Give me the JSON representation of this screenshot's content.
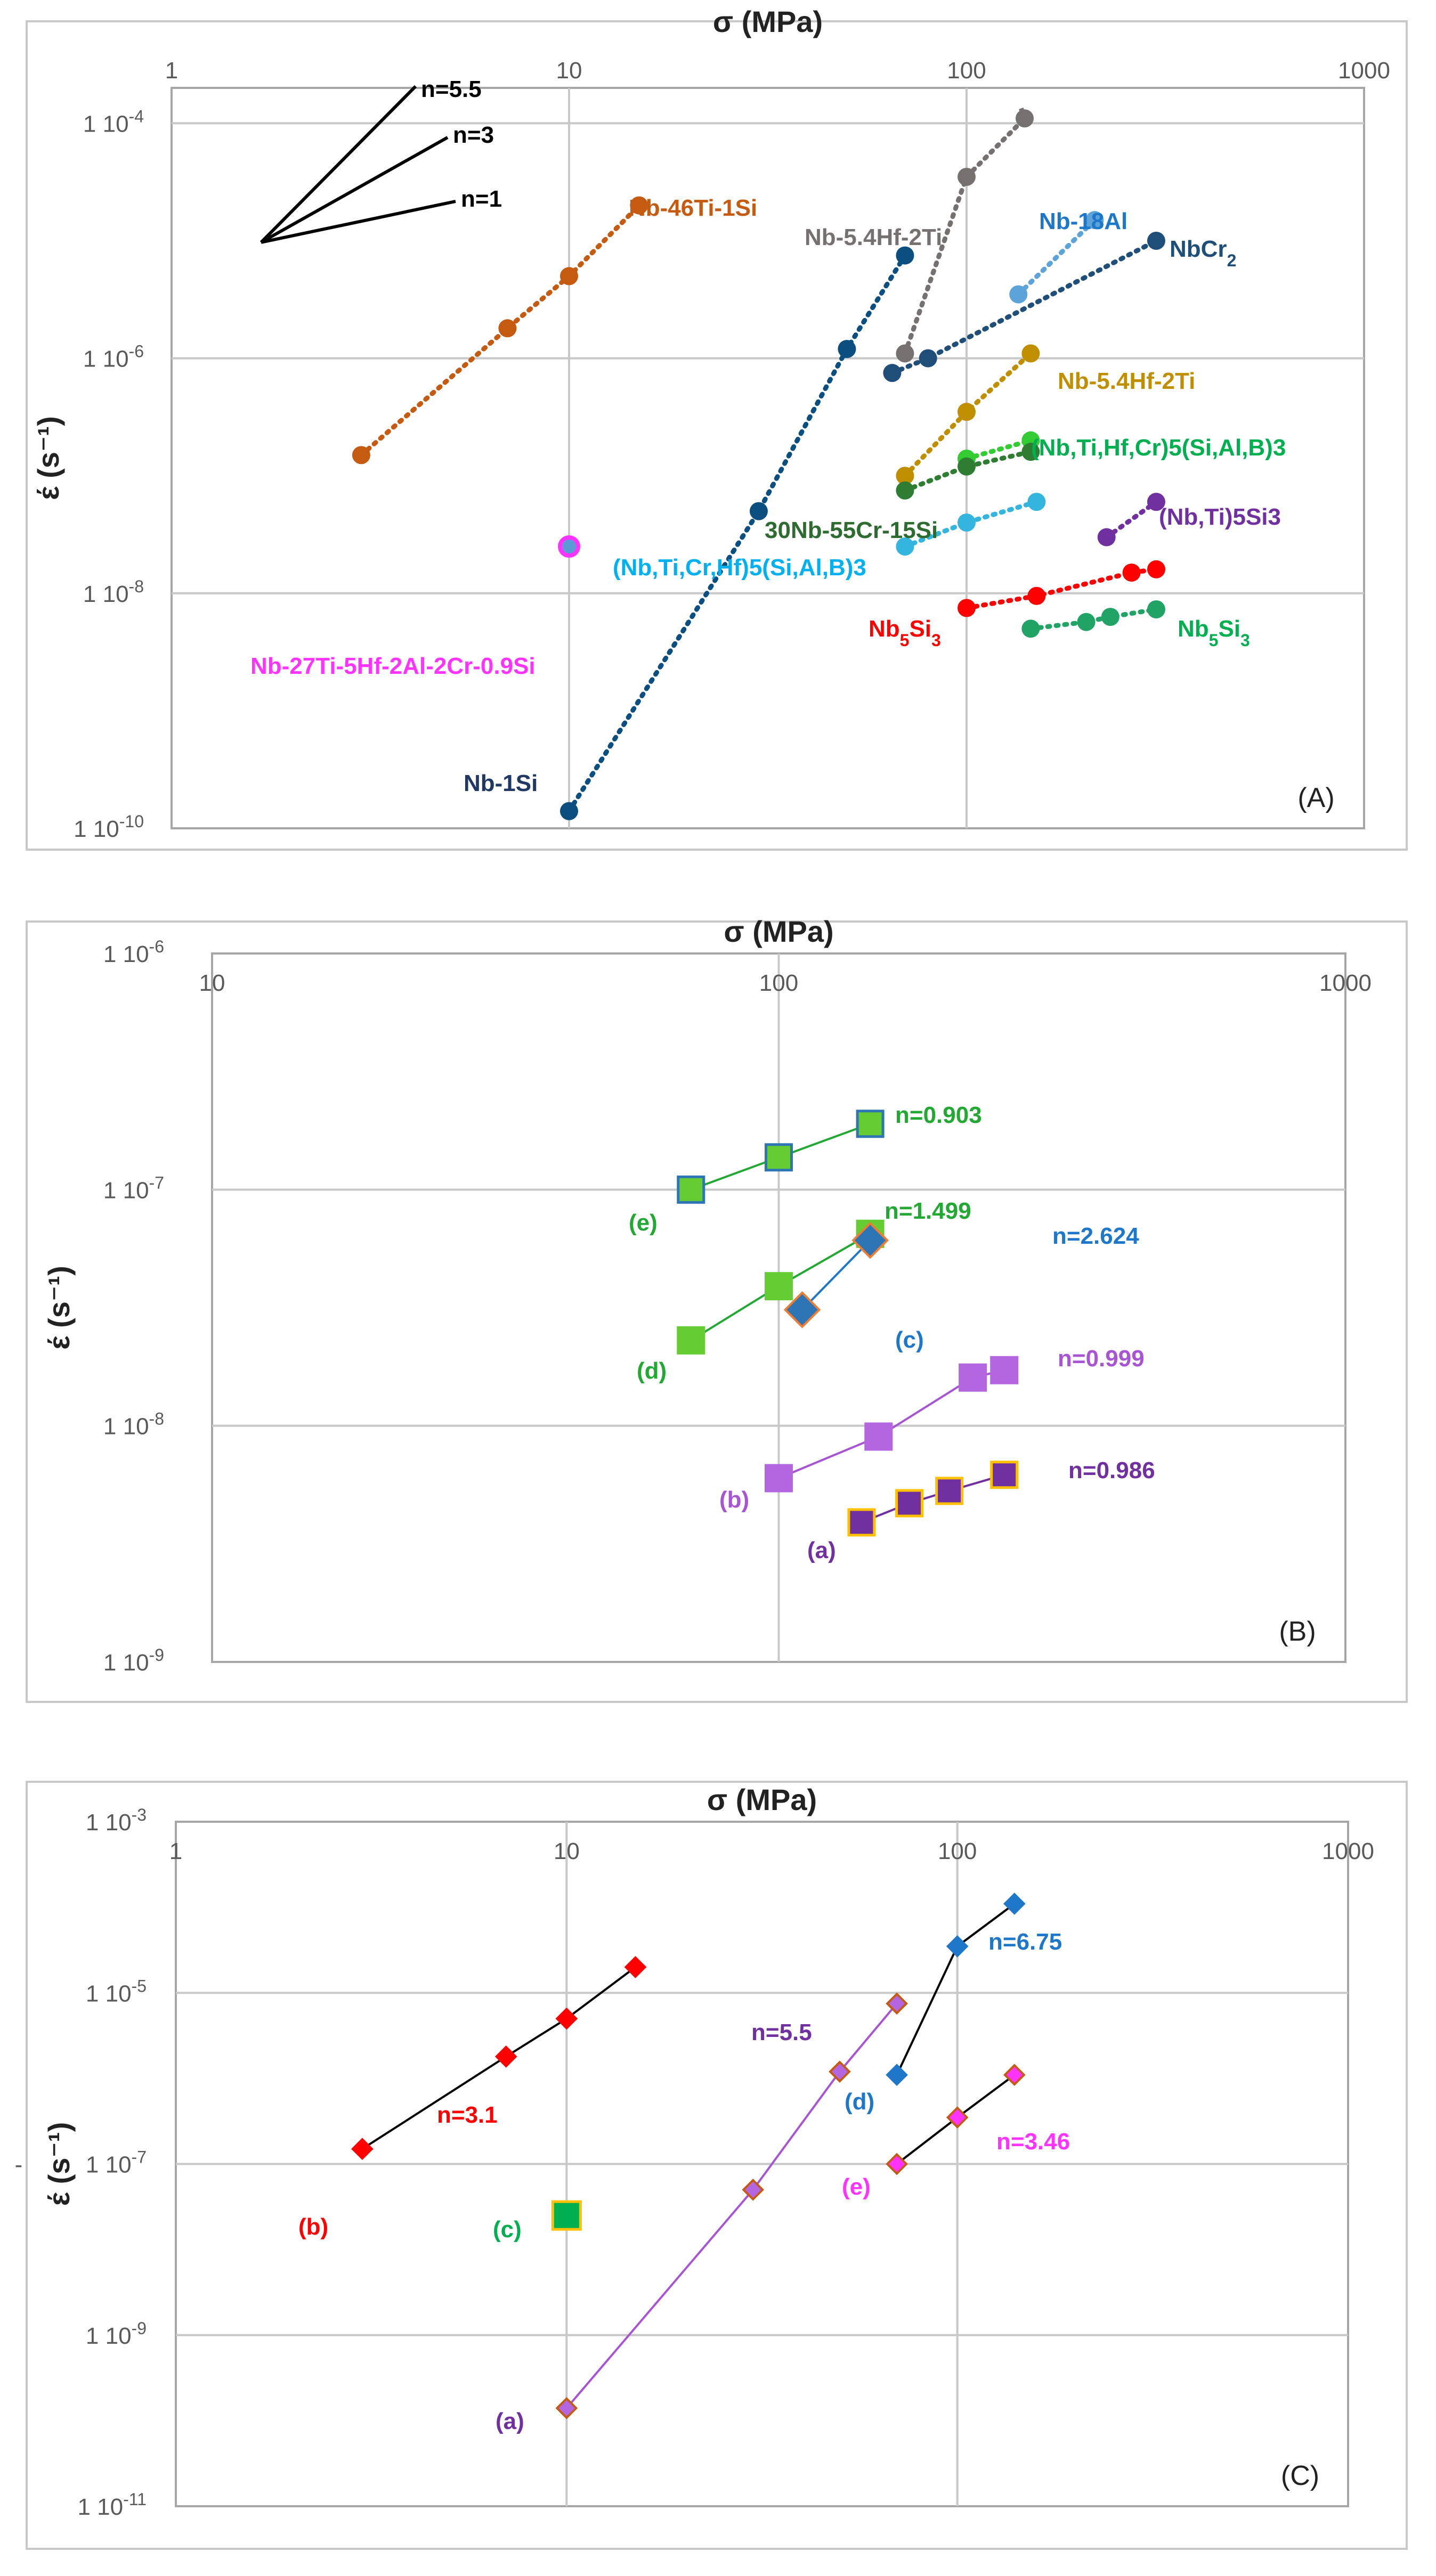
{
  "chart_data": [
    {
      "type": "line",
      "panel": "A",
      "panel_label": "(A)",
      "title": "σ (MPa)",
      "xlabel": "σ (MPa)",
      "ylabel": "έ (s⁻¹)",
      "xscale": "log",
      "yscale": "log",
      "xlim": [
        1,
        1000
      ],
      "ylim": [
        1e-10,
        0.0002
      ],
      "x_ticks": [
        {
          "v": 1,
          "label": "1"
        },
        {
          "v": 10,
          "label": "10"
        },
        {
          "v": 100,
          "label": "100"
        },
        {
          "v": 1000,
          "label": "1000"
        }
      ],
      "y_ticks": [
        {
          "v": 0.0001,
          "label": "1 10-4",
          "base": "1 10",
          "exp": "-4"
        },
        {
          "v": 1e-06,
          "label": "1 10-6",
          "base": "1 10",
          "exp": "-6"
        },
        {
          "v": 1e-08,
          "label": "1 10-8",
          "base": "1 10",
          "exp": "-8"
        },
        {
          "v": 1e-10,
          "label": "1 10-10",
          "base": "1 10",
          "exp": "-10"
        }
      ],
      "slope_key": [
        "n=5.5",
        "n=3",
        "n=1"
      ],
      "series": [
        {
          "name": "Nb-46Ti-1Si",
          "color": "#C55A11",
          "x": [
            3,
            7,
            10,
            15
          ],
          "y": [
            1.5e-07,
            1.8e-06,
            5e-06,
            2e-05
          ]
        },
        {
          "name": "Nb-5.4Hf-2Ti",
          "color": "#767171",
          "x": [
            70,
            100,
            140
          ],
          "y": [
            1.1e-06,
            3.5e-05,
            0.00011
          ]
        },
        {
          "name": "Nb-18Al",
          "color": "#5BA3D9",
          "x": [
            135,
            210
          ],
          "y": [
            3.5e-06,
            1.5e-05
          ]
        },
        {
          "name": "NbCr2",
          "color": "#1F4E79",
          "x": [
            65,
            80,
            300
          ],
          "y": [
            7.5e-07,
            1e-06,
            1e-05
          ]
        },
        {
          "name": "Nb-5.4Hf-2Ti",
          "color": "#BF8F00",
          "x": [
            70,
            100,
            145
          ],
          "y": [
            1e-07,
            3.5e-07,
            1.1e-06
          ]
        },
        {
          "name": "(Nb,Ti,Hf,Cr)5(Si,Al,B)3",
          "color": "#33CC33",
          "x": [
            100,
            145
          ],
          "y": [
            1.4e-07,
            2e-07
          ]
        },
        {
          "name": "30Nb-55Cr-15Si",
          "color": "#2E7D32",
          "x": [
            70,
            100,
            145
          ],
          "y": [
            7.5e-08,
            1.2e-07,
            1.6e-07
          ]
        },
        {
          "name": "(Nb,Ti,Cr,Hf)5(Si,Al,B)3",
          "color": "#33B5DE",
          "x": [
            70,
            100,
            150
          ],
          "y": [
            2.5e-08,
            4e-08,
            6e-08
          ]
        },
        {
          "name": "(Nb,Ti)5Si3",
          "color": "#7030A0",
          "x": [
            225,
            300
          ],
          "y": [
            3e-08,
            6e-08
          ]
        },
        {
          "name": "Nb5Si3",
          "color": "#FF0000",
          "x": [
            100,
            150,
            260,
            300
          ],
          "y": [
            7.5e-09,
            9.5e-09,
            1.5e-08,
            1.6e-08
          ]
        },
        {
          "name": "Nb5Si3",
          "color": "#21A366",
          "x": [
            145,
            200,
            230,
            300
          ],
          "y": [
            5e-09,
            5.7e-09,
            6.3e-09,
            7.3e-09
          ]
        },
        {
          "name": "Nb-1Si",
          "color": "#0A4F7F",
          "x": [
            10,
            30,
            50,
            70
          ],
          "y": [
            1.4e-10,
            5e-08,
            1.2e-06,
            7.5e-06
          ]
        },
        {
          "name": "Nb-27Ti-5Hf-2Al-2Cr-0.9Si",
          "color": "#FF33FF",
          "x": [
            10
          ],
          "y": [
            2.5e-08
          ]
        }
      ],
      "labels": [
        {
          "text": "Nb-46Ti-1Si",
          "color": "#C55A11"
        },
        {
          "text": "Nb-5.4Hf-2Ti",
          "color": "#767171"
        },
        {
          "text": "Nb-18Al",
          "color": "#1F77C9"
        },
        {
          "text": "NbCr",
          "sub": "2",
          "color": "#1F4E79"
        },
        {
          "text": "Nb-5.4Hf-2Ti",
          "color": "#BF8F00"
        },
        {
          "text": "(Nb,Ti,Hf,Cr)5(Si,Al,B)3",
          "color": "#00B050"
        },
        {
          "text": "30Nb-55Cr-15Si",
          "color": "#2E6B30"
        },
        {
          "text": "(Nb,Ti,Cr,Hf)5(Si,Al,B)3",
          "color": "#00B0F0"
        },
        {
          "text": "(Nb,Ti)5Si3",
          "color": "#7030A0"
        },
        {
          "text": "Nb",
          "sub": "5",
          "text2": "Si",
          "sub2": "3",
          "color": "#FF0000"
        },
        {
          "text": "Nb",
          "sub": "5",
          "text2": "Si",
          "sub2": "3",
          "color": "#00B050"
        },
        {
          "text": "Nb-27Ti-5Hf-2Al-2Cr-0.9Si",
          "color": "#FF33FF"
        },
        {
          "text": "Nb-1Si",
          "color": "#1F3864"
        }
      ]
    },
    {
      "type": "line",
      "panel": "B",
      "panel_label": "(B)",
      "title": "σ (MPa)",
      "xlabel": "σ (MPa)",
      "ylabel": "έ (s⁻¹)",
      "xscale": "log",
      "yscale": "log",
      "xlim": [
        10,
        1000
      ],
      "ylim": [
        1e-09,
        1e-06
      ],
      "x_ticks": [
        {
          "v": 10,
          "label": "10"
        },
        {
          "v": 100,
          "label": "100"
        },
        {
          "v": 1000,
          "label": "1000"
        }
      ],
      "y_ticks": [
        {
          "v": 1e-06,
          "label": "1 10-6",
          "base": "1 10",
          "exp": "-6"
        },
        {
          "v": 1e-07,
          "label": "1 10-7",
          "base": "1 10",
          "exp": "-7"
        },
        {
          "v": 1e-08,
          "label": "1 10-8",
          "base": "1 10",
          "exp": "-8"
        },
        {
          "v": 1e-09,
          "label": "1 10-9",
          "base": "1 10",
          "exp": "-9"
        }
      ],
      "series": [
        {
          "name": "(e)",
          "n": "n=0.903",
          "color": "#22A833",
          "marker_fill": "#66CC33",
          "marker_stroke": "#2E75B6",
          "marker": "square",
          "x": [
            70,
            100,
            145
          ],
          "y": [
            1e-07,
            1.37e-07,
            1.9e-07
          ]
        },
        {
          "name": "(d)",
          "n": "n=1.499",
          "color": "#22A833",
          "marker_fill": "#66CC33",
          "marker_stroke": "#66CC33",
          "marker": "square",
          "x": [
            70,
            100,
            145
          ],
          "y": [
            2.3e-08,
            3.9e-08,
            6.5e-08
          ]
        },
        {
          "name": "(c)",
          "n": "n=2.624",
          "color": "#1F77C9",
          "marker_fill": "#2E75B6",
          "marker_stroke": "#ED7D31",
          "marker": "diamond",
          "x": [
            110,
            145
          ],
          "y": [
            3.1e-08,
            6.1e-08
          ]
        },
        {
          "name": "(b)",
          "n": "n=0.999",
          "color": "#A855D4",
          "marker_fill": "#B366E0",
          "marker_stroke": "#B366E0",
          "marker": "square",
          "x": [
            100,
            150,
            220,
            250
          ],
          "y": [
            6e-09,
            9e-09,
            1.6e-08,
            1.72e-08
          ]
        },
        {
          "name": "(a)",
          "n": "n=0.986",
          "color": "#7030A0",
          "marker_fill": "#7030A0",
          "marker_stroke": "#FFC000",
          "marker": "square",
          "x": [
            140,
            170,
            200,
            250
          ],
          "y": [
            3.9e-09,
            4.7e-09,
            5.3e-09,
            6.2e-09
          ]
        }
      ]
    },
    {
      "type": "line",
      "panel": "C",
      "panel_label": "(C)",
      "title": "σ (MPa)",
      "xlabel": "σ (MPa)",
      "ylabel": "έ (s⁻¹)",
      "xscale": "log",
      "yscale": "log",
      "xlim": [
        1,
        1000
      ],
      "ylim": [
        1e-11,
        0.001
      ],
      "x_ticks": [
        {
          "v": 1,
          "label": "1"
        },
        {
          "v": 10,
          "label": "10"
        },
        {
          "v": 100,
          "label": "100"
        },
        {
          "v": 1000,
          "label": "1000"
        }
      ],
      "y_ticks": [
        {
          "v": 0.001,
          "label": "1 10-3",
          "base": "1 10",
          "exp": "-3"
        },
        {
          "v": 1e-05,
          "label": "1 10-5",
          "base": "1 10",
          "exp": "-5"
        },
        {
          "v": 1e-07,
          "label": "1 10-7",
          "base": "1 10",
          "exp": "-7"
        },
        {
          "v": 1e-09,
          "label": "1 10-9",
          "base": "1 10",
          "exp": "-9"
        },
        {
          "v": 1e-11,
          "label": "1 10-11",
          "base": "1 10",
          "exp": "-11"
        }
      ],
      "side_mark": "-",
      "series": [
        {
          "name": "(b)",
          "n": "n=3.1",
          "color": "#FF0000",
          "line": "#000000",
          "marker_fill": "#FF0000",
          "marker_stroke": "#FF0000",
          "marker": "diamond",
          "x": [
            3,
            7,
            10,
            15
          ],
          "y": [
            1.5e-07,
            1.8e-06,
            5e-06,
            2e-05
          ]
        },
        {
          "name": "(c)",
          "n": "",
          "color": "#00B050",
          "line": "",
          "marker_fill": "#00B050",
          "marker_stroke": "#FFC000",
          "marker": "square",
          "x": [
            10
          ],
          "y": [
            2.5e-08
          ]
        },
        {
          "name": "(a)",
          "n": "n=5.5",
          "color": "#7030A0",
          "line": "#A855D4",
          "marker_fill": "#B366E0",
          "marker_stroke": "#C55A11",
          "marker": "diamond",
          "x": [
            10,
            30,
            50,
            70
          ],
          "y": [
            1.4e-10,
            5e-08,
            1.2e-06,
            7.5e-06
          ]
        },
        {
          "name": "(d)",
          "n": "n=6.75",
          "color": "#1F77C9",
          "line": "#000000",
          "marker_fill": "#1F77C9",
          "marker_stroke": "#1F77C9",
          "marker": "diamond",
          "x": [
            70,
            100,
            140
          ],
          "y": [
            1.1e-06,
            3.5e-05,
            0.00011
          ]
        },
        {
          "name": "(e)",
          "n": "n=3.46",
          "color": "#FF33FF",
          "line": "#000000",
          "marker_fill": "#FF33FF",
          "marker_stroke": "#C55A11",
          "marker": "diamond",
          "x": [
            70,
            100,
            140
          ],
          "y": [
            1e-07,
            3.5e-07,
            1.1e-06
          ]
        }
      ]
    }
  ]
}
